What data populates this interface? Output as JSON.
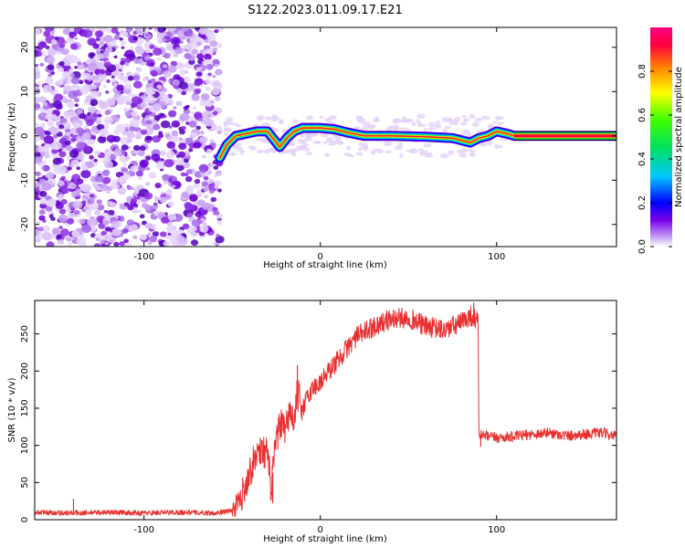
{
  "title": "S122.2023.011.09.17.E21",
  "chart_data": [
    {
      "type": "heatmap",
      "xlabel": "Height of straight line (km)",
      "ylabel": "Frequency (Hz)",
      "xlim": [
        -162,
        168
      ],
      "ylim": [
        -25,
        24.5
      ],
      "xticks": [
        -100,
        0,
        100
      ],
      "yticks": [
        -20,
        -10,
        0,
        10,
        20
      ],
      "colorbar": {
        "label": "Normalized spectral amplitude",
        "range": [
          0,
          1
        ],
        "ticks": [
          0.0,
          0.2,
          0.4,
          0.6,
          0.8
        ],
        "colormap": [
          "#ffffff",
          "#c9a6f5",
          "#7a00e6",
          "#0000ff",
          "#00c8ff",
          "#00e060",
          "#40ff00",
          "#ffff00",
          "#ff8000",
          "#ff0040",
          "#ff0080"
        ]
      },
      "noise_region_x": [
        -162,
        -57
      ],
      "ridge_points": [
        {
          "x": -57,
          "y": -5
        },
        {
          "x": -53,
          "y": -2
        },
        {
          "x": -48,
          "y": 0
        },
        {
          "x": -42,
          "y": 0.5
        },
        {
          "x": -36,
          "y": 1
        },
        {
          "x": -30,
          "y": 1
        },
        {
          "x": -26,
          "y": -1
        },
        {
          "x": -23,
          "y": -2.5
        },
        {
          "x": -19,
          "y": -0.5
        },
        {
          "x": -15,
          "y": 1
        },
        {
          "x": -10,
          "y": 1.8
        },
        {
          "x": 0,
          "y": 1.8
        },
        {
          "x": 8,
          "y": 1.5
        },
        {
          "x": 15,
          "y": 0.8
        },
        {
          "x": 25,
          "y": 0
        },
        {
          "x": 40,
          "y": 0
        },
        {
          "x": 60,
          "y": -0.2
        },
        {
          "x": 75,
          "y": -0.5
        },
        {
          "x": 80,
          "y": -1
        },
        {
          "x": 85,
          "y": -1.5
        },
        {
          "x": 90,
          "y": -0.5
        },
        {
          "x": 95,
          "y": 0
        },
        {
          "x": 100,
          "y": 1
        },
        {
          "x": 106,
          "y": 0.5
        },
        {
          "x": 110,
          "y": 0
        },
        {
          "x": 168,
          "y": 0
        }
      ]
    },
    {
      "type": "line",
      "xlabel": "Height of straight line (km)",
      "ylabel": "SNR (10 * v/v)",
      "xlim": [
        -162,
        168
      ],
      "ylim": [
        0,
        295
      ],
      "xticks": [
        -100,
        0,
        100
      ],
      "yticks": [
        0,
        50,
        100,
        150,
        200,
        250
      ],
      "color": "#e83030",
      "series": [
        {
          "x": [
            -162,
            -140,
            -120,
            -100,
            -80,
            -60,
            -50,
            -45,
            -40,
            -35,
            -30,
            -28,
            -25,
            -22,
            -20,
            -17,
            -15,
            -13,
            -10,
            -5,
            0,
            10,
            20,
            30,
            40,
            50,
            60,
            70,
            80,
            85,
            88,
            89.5,
            90,
            95,
            100,
            110,
            120,
            130,
            140,
            150,
            160,
            168
          ],
          "y": [
            10,
            9,
            10,
            9,
            10,
            9,
            12,
            30,
            65,
            95,
            90,
            40,
            110,
            130,
            115,
            150,
            125,
            170,
            150,
            175,
            185,
            215,
            245,
            260,
            270,
            272,
            260,
            255,
            265,
            275,
            270,
            265,
            115,
            112,
            110,
            112,
            115,
            117,
            113,
            115,
            117,
            112
          ],
          "spikes": [
            {
              "x": -13,
              "y": 208
            },
            {
              "x": -27,
              "y": 22
            },
            {
              "x": -140,
              "y": 28
            },
            {
              "x": 87,
              "y": 292
            },
            {
              "x": 91,
              "y": 98
            }
          ]
        }
      ]
    }
  ]
}
